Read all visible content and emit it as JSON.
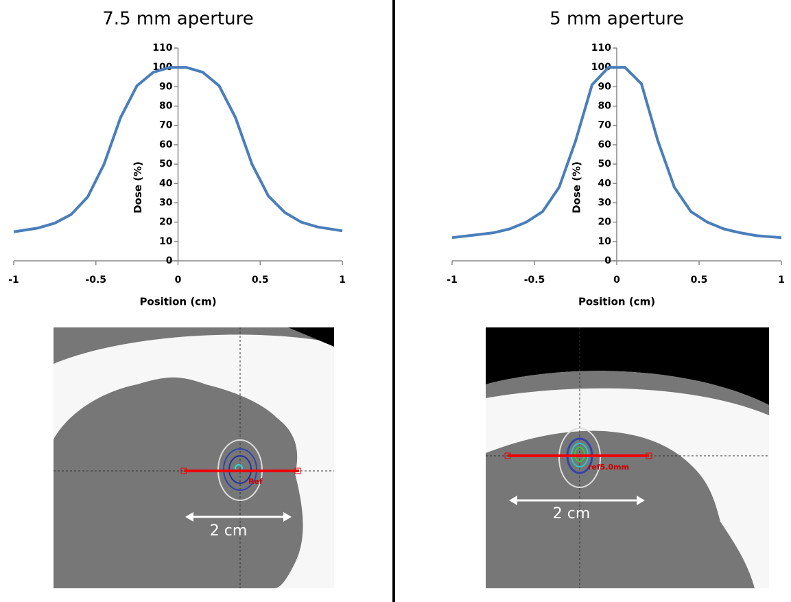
{
  "chart_data": [
    {
      "type": "line",
      "title": "7.5 mm aperture",
      "x_label": "Position (cm)",
      "y_label": "Dose (%)",
      "x": [
        -1,
        -0.85,
        -0.75,
        -0.65,
        -0.55,
        -0.45,
        -0.35,
        -0.25,
        -0.15,
        -0.05,
        0.05,
        0.15,
        0.25,
        0.35,
        0.45,
        0.55,
        0.65,
        0.75,
        0.85,
        1
      ],
      "values": [
        15,
        17,
        19.5,
        24,
        33,
        50,
        74,
        90.5,
        97.5,
        100,
        100,
        97.5,
        90.5,
        74,
        50,
        33.5,
        25,
        20,
        17.5,
        15.5
      ],
      "color": "#4a7ebb",
      "xlim": [
        -1,
        1
      ],
      "ylim": [
        0,
        110
      ],
      "xticks": [
        -1,
        -0.5,
        0,
        0.5,
        1
      ],
      "yticks": [
        0,
        10,
        20,
        30,
        40,
        50,
        60,
        70,
        80,
        90,
        100,
        110
      ]
    },
    {
      "type": "line",
      "title": "5 mm aperture",
      "x_label": "Position (cm)",
      "y_label": "Dose (%)",
      "x": [
        -1,
        -0.85,
        -0.75,
        -0.65,
        -0.55,
        -0.45,
        -0.35,
        -0.25,
        -0.15,
        -0.05,
        0.05,
        0.15,
        0.25,
        0.35,
        0.45,
        0.55,
        0.65,
        0.75,
        0.85,
        1
      ],
      "values": [
        12,
        13.5,
        14.5,
        16.5,
        20,
        25.5,
        38,
        62,
        91,
        100,
        100,
        91.5,
        62,
        38,
        25.5,
        20,
        16.5,
        14.5,
        13,
        12
      ],
      "color": "#4a7ebb",
      "xlim": [
        -1,
        1
      ],
      "ylim": [
        0,
        110
      ],
      "xticks": [
        -1,
        -0.5,
        0,
        0.5,
        1
      ],
      "yticks": [
        0,
        10,
        20,
        30,
        40,
        50,
        60,
        70,
        80,
        90,
        100,
        110
      ]
    }
  ],
  "images": [
    {
      "scale_label": "2 cm",
      "marker_label": "Ref"
    },
    {
      "scale_label": "2 cm",
      "marker_label": "ref5.0mm"
    }
  ]
}
